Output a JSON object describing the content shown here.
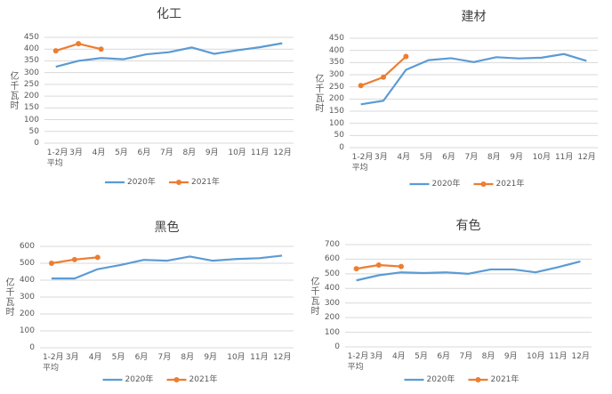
{
  "chart_data": [
    {
      "type": "line",
      "title": "化工",
      "y_label": "亿千瓦时",
      "categories": [
        "1-2月\n平均",
        "3月",
        "4月",
        "5月",
        "6月",
        "7月",
        "8月",
        "9月",
        "10月",
        "11月",
        "12月"
      ],
      "ylim": [
        0,
        450
      ],
      "yticks": [
        0,
        50,
        100,
        150,
        200,
        250,
        300,
        350,
        400,
        450
      ],
      "grid": true,
      "legend": "bottom",
      "series": [
        {
          "name": "2020年",
          "color": "#5b9bd5",
          "markers": false,
          "values": [
            325,
            350,
            362,
            357,
            378,
            387,
            407,
            380,
            395,
            408,
            425
          ]
        },
        {
          "name": "2021年",
          "color": "#ed7d31",
          "markers": true,
          "values": [
            393,
            423,
            400,
            null,
            null,
            null,
            null,
            null,
            null,
            null,
            null
          ]
        }
      ]
    },
    {
      "type": "line",
      "title": "建材",
      "y_label": "亿千瓦时",
      "categories": [
        "1-2月\n平均",
        "3月",
        "4月",
        "5月",
        "6月",
        "7月",
        "8月",
        "9月",
        "10月",
        "11月",
        "12月"
      ],
      "ylim": [
        0,
        450
      ],
      "yticks": [
        0,
        50,
        100,
        150,
        200,
        250,
        300,
        350,
        400,
        450
      ],
      "grid": true,
      "legend": "bottom",
      "series": [
        {
          "name": "2020年",
          "color": "#5b9bd5",
          "markers": false,
          "values": [
            178,
            193,
            320,
            360,
            368,
            352,
            372,
            367,
            370,
            385,
            357
          ]
        },
        {
          "name": "2021年",
          "color": "#ed7d31",
          "markers": true,
          "values": [
            255,
            290,
            375,
            null,
            null,
            null,
            null,
            null,
            null,
            null,
            null
          ]
        }
      ]
    },
    {
      "type": "line",
      "title": "黑色",
      "y_label": "亿千瓦时",
      "categories": [
        "1-2月\n平均",
        "3月",
        "4月",
        "5月",
        "6月",
        "7月",
        "8月",
        "9月",
        "10月",
        "11月",
        "12月"
      ],
      "ylim": [
        0,
        600
      ],
      "yticks": [
        0,
        100,
        200,
        300,
        400,
        500,
        600
      ],
      "grid": true,
      "legend": "bottom",
      "series": [
        {
          "name": "2020年",
          "color": "#5b9bd5",
          "markers": false,
          "values": [
            410,
            410,
            465,
            490,
            520,
            515,
            540,
            515,
            525,
            530,
            545
          ]
        },
        {
          "name": "2021年",
          "color": "#ed7d31",
          "markers": true,
          "values": [
            500,
            522,
            535,
            null,
            null,
            null,
            null,
            null,
            null,
            null,
            null
          ]
        }
      ]
    },
    {
      "type": "line",
      "title": "有色",
      "y_label": "亿千瓦时",
      "categories": [
        "1-2月\n平均",
        "3月",
        "4月",
        "5月",
        "6月",
        "7月",
        "8月",
        "9月",
        "10月",
        "11月",
        "12月"
      ],
      "ylim": [
        0,
        700
      ],
      "yticks": [
        0,
        100,
        200,
        300,
        400,
        500,
        600,
        700
      ],
      "grid": true,
      "legend": "bottom",
      "series": [
        {
          "name": "2020年",
          "color": "#5b9bd5",
          "markers": false,
          "values": [
            455,
            490,
            510,
            505,
            510,
            500,
            530,
            530,
            510,
            545,
            585
          ]
        },
        {
          "name": "2021年",
          "color": "#ed7d31",
          "markers": true,
          "values": [
            535,
            560,
            550,
            null,
            null,
            null,
            null,
            null,
            null,
            null,
            null
          ]
        }
      ]
    }
  ]
}
